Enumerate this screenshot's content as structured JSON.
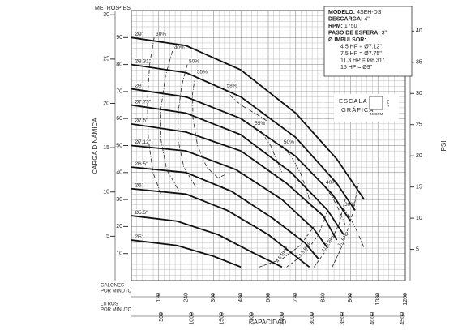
{
  "chart_data": {
    "type": "line",
    "xlabel": "CAPACIDAD",
    "ylabel": "CARGA DINÁMICA",
    "x": {
      "label_1": "GALONES",
      "label_2": "POR MINUTO",
      "lim": [
        0,
        1200
      ],
      "ticks": [
        120,
        240,
        360,
        480,
        600,
        720,
        840,
        960,
        1080,
        1200
      ]
    },
    "x2": {
      "label_1": "LITROS",
      "label_2": "POR MINUTO",
      "lim": [
        0,
        4542
      ],
      "ticks": [
        500,
        1000,
        1500,
        2000,
        2500,
        3000,
        3500,
        4000,
        4500
      ]
    },
    "y": {
      "label": "PIES",
      "lim": [
        0,
        100
      ],
      "ticks": [
        10,
        20,
        30,
        40,
        50,
        60,
        70,
        80,
        90
      ]
    },
    "y_m": {
      "label": "METROS",
      "lim": [
        0,
        30.48
      ],
      "ticks": [
        5,
        10,
        15,
        20,
        25,
        30
      ]
    },
    "y2": {
      "label": "PSI",
      "lim": [
        0,
        43.3
      ],
      "ticks": [
        5,
        10,
        15,
        20,
        25,
        30,
        35,
        40
      ]
    },
    "grid": true,
    "scale_box": {
      "title_1": "ESCALA",
      "title_2": "GRÁFICA",
      "ft": 2,
      "ft_label": "2 FT",
      "gpm": 24,
      "gpm_label": "24 GPM"
    },
    "info": [
      {
        "label": "MODELO:",
        "value": "4SEH-DS"
      },
      {
        "label": "DESCARGA:",
        "value": "4\""
      },
      {
        "label": "RPM:",
        "value": "1750"
      },
      {
        "label": "PASO DE ESFERA:",
        "value": "3\""
      },
      {
        "label": "Ø IMPULSOR:",
        "value": ""
      }
    ],
    "hp_table": [
      "4.5 HP = Ø7.12\"",
      "7.5 HP = Ø7.75\"",
      "11.3 HP = Ø8.31\"",
      "15 HP = Ø9\""
    ],
    "impellers": [
      {
        "name": "Ø9\"",
        "x": [
          0,
          240,
          480,
          720,
          900,
          1020
        ],
        "y": [
          90,
          87,
          78,
          62,
          45,
          30
        ]
      },
      {
        "name": "Ø8.31\"",
        "x": [
          0,
          240,
          480,
          720,
          900,
          980
        ],
        "y": [
          80,
          77,
          68,
          53,
          36,
          26
        ]
      },
      {
        "name": "Ø8\"",
        "x": [
          0,
          240,
          480,
          720,
          880,
          960
        ],
        "y": [
          71,
          68,
          60,
          46,
          32,
          22
        ]
      },
      {
        "name": "Ø7.75\"",
        "x": [
          0,
          240,
          480,
          700,
          860,
          930
        ],
        "y": [
          65,
          62,
          54,
          40,
          26,
          17
        ]
      },
      {
        "name": "Ø7.5\"",
        "x": [
          0,
          240,
          480,
          680,
          840,
          900
        ],
        "y": [
          58,
          55,
          48,
          36,
          24,
          15
        ]
      },
      {
        "name": "Ø7.12\"",
        "x": [
          0,
          240,
          460,
          660,
          800,
          860
        ],
        "y": [
          50,
          48,
          41,
          30,
          19,
          12
        ]
      },
      {
        "name": "Ø6.5\"",
        "x": [
          0,
          240,
          440,
          620,
          760,
          820
        ],
        "y": [
          42,
          40,
          33,
          23,
          14,
          8
        ]
      },
      {
        "name": "Ø6\"",
        "x": [
          0,
          240,
          420,
          600,
          720,
          780
        ],
        "y": [
          34,
          32,
          26,
          17,
          9,
          5
        ]
      },
      {
        "name": "Ø5.5\"",
        "x": [
          0,
          200,
          380,
          540,
          660
        ],
        "y": [
          24,
          22,
          17,
          10,
          5
        ]
      },
      {
        "name": "Ø5\"",
        "x": [
          0,
          200,
          360,
          480
        ],
        "y": [
          15,
          13,
          9,
          5
        ]
      }
    ],
    "efficiency": [
      {
        "name": "30%",
        "x": [
          100,
          80,
          70,
          75,
          95,
          130
        ],
        "y": [
          90,
          80,
          66,
          52,
          40,
          32
        ]
      },
      {
        "name": "40%",
        "x": [
          180,
          150,
          130,
          130,
          155,
          210
        ],
        "y": [
          85,
          76,
          64,
          52,
          41,
          33
        ]
      },
      {
        "name": "50%",
        "x": [
          245,
          220,
          205,
          205,
          230,
          280
        ],
        "y": [
          80,
          72,
          62,
          52,
          42,
          35
        ]
      },
      {
        "name": "55%",
        "x": [
          280,
          268,
          270,
          290,
          330,
          380,
          430
        ],
        "y": [
          76,
          69,
          60,
          50,
          42,
          38,
          40
        ]
      },
      {
        "name": "58%",
        "x": [
          410,
          440,
          480,
          520,
          560,
          596
        ],
        "y": [
          71,
          68,
          65,
          63,
          61,
          59
        ]
      },
      {
        "name": "55%",
        "x": [
          533,
          570,
          610,
          640,
          660
        ],
        "y": [
          57,
          55,
          50,
          44,
          40
        ]
      },
      {
        "name": "50%",
        "x": [
          660,
          700,
          740,
          770,
          790
        ],
        "y": [
          50,
          46,
          40,
          33,
          27
        ]
      },
      {
        "name": "40%",
        "x": [
          845,
          880,
          910,
          940
        ],
        "y": [
          35,
          31,
          26,
          20
        ]
      },
      {
        "name": "30%",
        "x": [
          927,
          960,
          990,
          1020
        ],
        "y": [
          27,
          23,
          18,
          12
        ]
      }
    ],
    "power": [
      {
        "name": "4.5 BHP",
        "x": [
          560,
          660,
          740,
          800
        ],
        "y": [
          5,
          8,
          13,
          20
        ]
      },
      {
        "name": "7.5 BHP",
        "x": [
          680,
          760,
          820,
          860
        ],
        "y": [
          5,
          10,
          17,
          26
        ]
      },
      {
        "name": "11.3 BHP",
        "x": [
          800,
          860,
          910,
          940
        ],
        "y": [
          5,
          12,
          21,
          31
        ]
      },
      {
        "name": "15 BHP",
        "x": [
          880,
          930,
          970,
          995
        ],
        "y": [
          5,
          14,
          25,
          36
        ]
      }
    ]
  }
}
